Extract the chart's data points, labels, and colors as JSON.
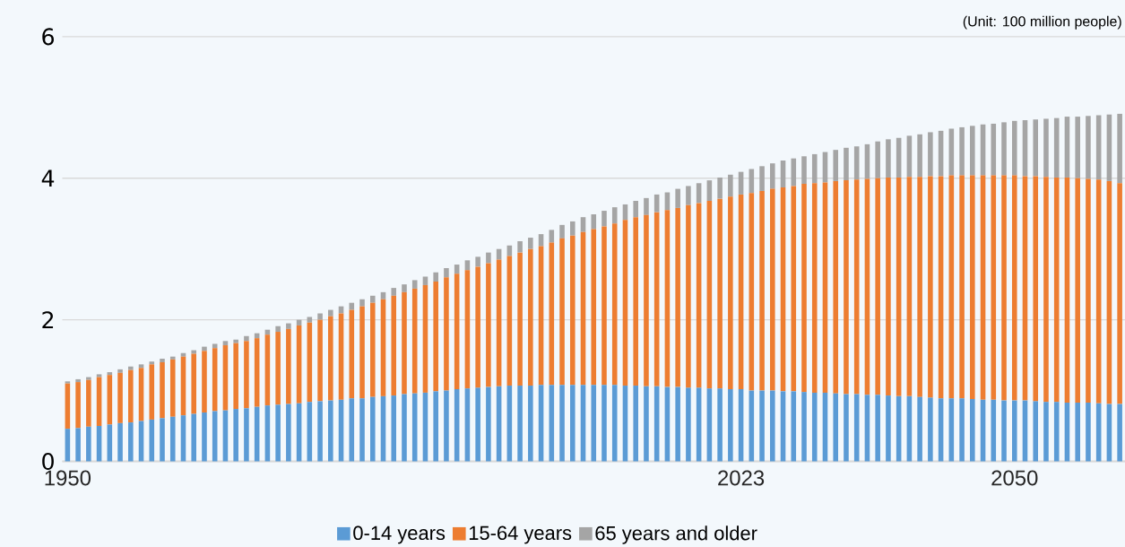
{
  "chart_data": {
    "type": "bar",
    "stacked": true,
    "categories": [
      "1950",
      null,
      null,
      null,
      null,
      null,
      null,
      null,
      null,
      null,
      null,
      null,
      null,
      null,
      null,
      null,
      null,
      null,
      null,
      null,
      null,
      null,
      null,
      null,
      null,
      null,
      null,
      null,
      null,
      null,
      null,
      null,
      null,
      null,
      null,
      null,
      null,
      null,
      null,
      null,
      null,
      null,
      null,
      null,
      null,
      null,
      null,
      null,
      null,
      null,
      null,
      null,
      null,
      null,
      null,
      null,
      null,
      null,
      null,
      null,
      null,
      null,
      null,
      null,
      "2023",
      null,
      null,
      null,
      null,
      null,
      null,
      null,
      null,
      null,
      null,
      null,
      null,
      null,
      null,
      null,
      null,
      null,
      null,
      null,
      null,
      null,
      null,
      null,
      null,
      null,
      "2050",
      null,
      null,
      null,
      null,
      null,
      null,
      null,
      null,
      null,
      null
    ],
    "series": [
      {
        "name": "0-14 years",
        "color": "#5b9bd5",
        "values": [
          0.46,
          0.47,
          0.49,
          0.5,
          0.52,
          0.54,
          0.55,
          0.57,
          0.59,
          0.61,
          0.63,
          0.65,
          0.67,
          0.69,
          0.71,
          0.72,
          0.74,
          0.75,
          0.77,
          0.79,
          0.8,
          0.81,
          0.82,
          0.84,
          0.85,
          0.86,
          0.87,
          0.89,
          0.89,
          0.91,
          0.92,
          0.93,
          0.95,
          0.96,
          0.97,
          0.99,
          1.0,
          1.02,
          1.03,
          1.04,
          1.05,
          1.06,
          1.07,
          1.07,
          1.07,
          1.08,
          1.08,
          1.08,
          1.08,
          1.08,
          1.08,
          1.08,
          1.08,
          1.07,
          1.07,
          1.06,
          1.06,
          1.05,
          1.05,
          1.04,
          1.04,
          1.03,
          1.03,
          1.02,
          1.02,
          1.0,
          1.0,
          1.0,
          0.99,
          0.99,
          0.98,
          0.97,
          0.97,
          0.96,
          0.95,
          0.95,
          0.94,
          0.94,
          0.93,
          0.92,
          0.92,
          0.91,
          0.9,
          0.89,
          0.89,
          0.89,
          0.88,
          0.87,
          0.87,
          0.86,
          0.86,
          0.86,
          0.85,
          0.84,
          0.84,
          0.83,
          0.83,
          0.83,
          0.82,
          0.81,
          0.81
        ]
      },
      {
        "name": "15-64 years",
        "color": "#ed7d31",
        "values": [
          0.64,
          0.65,
          0.66,
          0.69,
          0.7,
          0.71,
          0.74,
          0.75,
          0.78,
          0.79,
          0.81,
          0.83,
          0.85,
          0.87,
          0.89,
          0.92,
          0.93,
          0.95,
          0.97,
          1.0,
          1.03,
          1.06,
          1.1,
          1.12,
          1.15,
          1.19,
          1.22,
          1.25,
          1.3,
          1.33,
          1.37,
          1.41,
          1.44,
          1.48,
          1.52,
          1.55,
          1.6,
          1.63,
          1.67,
          1.71,
          1.75,
          1.79,
          1.83,
          1.88,
          1.93,
          1.96,
          2.01,
          2.07,
          2.11,
          2.16,
          2.2,
          2.24,
          2.28,
          2.34,
          2.38,
          2.42,
          2.46,
          2.5,
          2.53,
          2.58,
          2.61,
          2.65,
          2.68,
          2.72,
          2.75,
          2.79,
          2.82,
          2.85,
          2.88,
          2.9,
          2.94,
          2.96,
          2.97,
          3.0,
          3.02,
          3.03,
          3.05,
          3.06,
          3.08,
          3.09,
          3.1,
          3.11,
          3.13,
          3.14,
          3.15,
          3.15,
          3.16,
          3.17,
          3.17,
          3.18,
          3.18,
          3.17,
          3.18,
          3.18,
          3.17,
          3.18,
          3.17,
          3.16,
          3.16,
          3.15,
          3.12
        ]
      },
      {
        "name": "65 years and older",
        "color": "#a5a5a5",
        "values": [
          0.03,
          0.04,
          0.04,
          0.04,
          0.04,
          0.05,
          0.05,
          0.05,
          0.04,
          0.05,
          0.04,
          0.05,
          0.05,
          0.06,
          0.06,
          0.06,
          0.05,
          0.07,
          0.07,
          0.07,
          0.08,
          0.08,
          0.08,
          0.08,
          0.09,
          0.09,
          0.1,
          0.1,
          0.1,
          0.1,
          0.1,
          0.11,
          0.11,
          0.12,
          0.12,
          0.13,
          0.13,
          0.13,
          0.14,
          0.14,
          0.15,
          0.15,
          0.15,
          0.16,
          0.16,
          0.17,
          0.18,
          0.19,
          0.2,
          0.21,
          0.21,
          0.22,
          0.23,
          0.22,
          0.23,
          0.24,
          0.25,
          0.25,
          0.27,
          0.27,
          0.28,
          0.29,
          0.3,
          0.31,
          0.32,
          0.34,
          0.35,
          0.36,
          0.38,
          0.39,
          0.39,
          0.41,
          0.43,
          0.44,
          0.46,
          0.47,
          0.49,
          0.52,
          0.54,
          0.56,
          0.58,
          0.6,
          0.62,
          0.64,
          0.66,
          0.68,
          0.7,
          0.72,
          0.73,
          0.75,
          0.77,
          0.79,
          0.8,
          0.82,
          0.84,
          0.86,
          0.87,
          0.89,
          0.91,
          0.94,
          0.98
        ]
      }
    ],
    "ylim": [
      0,
      6
    ],
    "yticks": [
      0,
      2,
      4,
      6
    ],
    "grid": "y",
    "legend": "bottom",
    "annotations": [
      "(Unit: 100 million people)"
    ]
  }
}
